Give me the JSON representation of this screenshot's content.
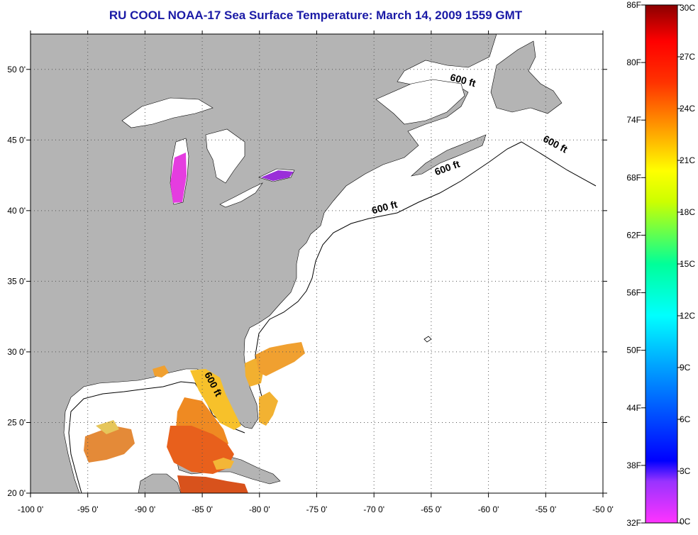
{
  "title": "RU COOL  NOAA-17  Sea Surface Temperature:  March 14, 2009 1559 GMT",
  "map": {
    "lon_ticks": [
      {
        "value": -100,
        "label": "-100 0'"
      },
      {
        "value": -95,
        "label": "-95 0'"
      },
      {
        "value": -90,
        "label": "-90 0'"
      },
      {
        "value": -85,
        "label": "-85 0'"
      },
      {
        "value": -80,
        "label": "-80 0'"
      },
      {
        "value": -75,
        "label": "-75 0'"
      },
      {
        "value": -70,
        "label": "-70 0'"
      },
      {
        "value": -65,
        "label": "-65 0'"
      },
      {
        "value": -60,
        "label": "-60 0'"
      },
      {
        "value": -55,
        "label": "-55 0'"
      },
      {
        "value": -50,
        "label": "-50 0'"
      }
    ],
    "lat_ticks": [
      {
        "value": 50,
        "label": "50 0'"
      },
      {
        "value": 45,
        "label": "45 0'"
      },
      {
        "value": 40,
        "label": "40 0'"
      },
      {
        "value": 35,
        "label": "35 0'"
      },
      {
        "value": 30,
        "label": "30 0'"
      },
      {
        "value": 25,
        "label": "25 0'"
      },
      {
        "value": 20,
        "label": "20 0'"
      }
    ],
    "isobath_labels": [
      {
        "text": "600 ft",
        "lon": -62.3,
        "lat": 49.0,
        "rotation": 15
      },
      {
        "text": "600 ft",
        "lon": -54.3,
        "lat": 44.5,
        "rotation": 28
      },
      {
        "text": "600 ft",
        "lon": -63.5,
        "lat": 42.8,
        "rotation": -20
      },
      {
        "text": "600 ft",
        "lon": -69.0,
        "lat": 40.0,
        "rotation": -15
      },
      {
        "text": "600 ft",
        "lon": -84.3,
        "lat": 27.6,
        "rotation": 62
      }
    ]
  },
  "colorbar": {
    "fahrenheit": [
      "86F",
      "80F",
      "74F",
      "68F",
      "62F",
      "56F",
      "50F",
      "44F",
      "38F",
      "32F"
    ],
    "celsius": [
      "30C",
      "27C",
      "24C",
      "21C",
      "18C",
      "15C",
      "12C",
      "9C",
      "6C",
      "3C",
      "0C"
    ]
  },
  "colors": {
    "land": "#b4b4b4",
    "ocean": "#ffffff",
    "title": "#1a1aa6",
    "lake_erie": "#9a2fd9",
    "lake_michigan": "#e53de0"
  }
}
